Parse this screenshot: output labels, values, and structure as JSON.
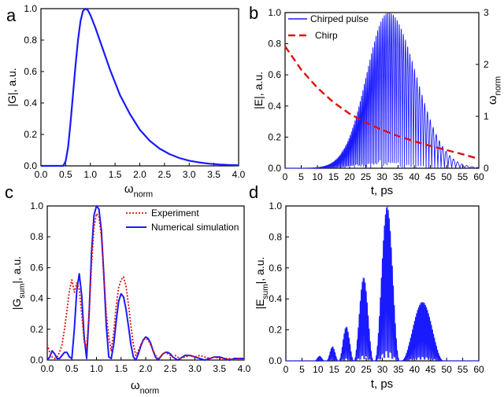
{
  "colors": {
    "blue": "#1a1aff",
    "red": "#e01010",
    "axis": "#000000"
  },
  "chart_data": [
    {
      "id": "a",
      "type": "line",
      "panel_label": "a",
      "xlabel": "ω",
      "xlabel_sub": "norm",
      "ylabel": "|G|, a.u.",
      "xlim": [
        0,
        4
      ],
      "ylim": [
        0,
        1
      ],
      "xticks": [
        "0.0",
        "0.5",
        "1.0",
        "1.5",
        "2.0",
        "2.5",
        "3.0",
        "3.5",
        "4.0"
      ],
      "yticks": [
        "0.0",
        "0.2",
        "0.4",
        "0.6",
        "0.8",
        "1.0"
      ],
      "series": [
        {
          "x": [
            0,
            0.45,
            0.5,
            0.55,
            0.6,
            0.65,
            0.7,
            0.75,
            0.8,
            0.85,
            0.9,
            0.95,
            1.0,
            1.1,
            1.2,
            1.3,
            1.4,
            1.5,
            1.6,
            1.7,
            1.8,
            1.9,
            2.0,
            2.2,
            2.4,
            2.6,
            2.8,
            3.0,
            3.2,
            3.4,
            3.6,
            3.8,
            4.0
          ],
          "y": [
            0,
            0,
            0.03,
            0.12,
            0.28,
            0.46,
            0.64,
            0.8,
            0.92,
            0.985,
            1.0,
            0.99,
            0.96,
            0.88,
            0.79,
            0.7,
            0.61,
            0.53,
            0.45,
            0.39,
            0.33,
            0.28,
            0.23,
            0.16,
            0.11,
            0.075,
            0.05,
            0.033,
            0.022,
            0.014,
            0.009,
            0.006,
            0.004
          ]
        }
      ]
    },
    {
      "id": "b",
      "type": "line",
      "panel_label": "b",
      "xlabel": "t, ps",
      "ylabel": "|E|, a.u.",
      "ylabel_right": "ω",
      "ylabel_right_sub": "norm",
      "xlim": [
        0,
        60
      ],
      "ylim": [
        0,
        1
      ],
      "ylim_right": [
        0,
        3
      ],
      "xticks": [
        "0",
        "5",
        "10",
        "15",
        "20",
        "25",
        "30",
        "35",
        "40",
        "45",
        "50",
        "55",
        "60"
      ],
      "yticks": [
        "0.0",
        "0.2",
        "0.4",
        "0.6",
        "0.8",
        "1.0"
      ],
      "yticks_right": [
        "0",
        "1",
        "2",
        "3"
      ],
      "legend": [
        {
          "name": "Chirped pulse",
          "style": "solid",
          "color": "#1a1aff"
        },
        {
          "name": "Chirp",
          "style": "dashed",
          "color": "#e01010"
        }
      ],
      "envelope": {
        "center": 32,
        "width_left": 9.5,
        "width_right": 12
      },
      "chirp": {
        "t": [
          0,
          5,
          10,
          15,
          20,
          25,
          30,
          35,
          40,
          45,
          50,
          55,
          60
        ],
        "omega": [
          2.35,
          1.9,
          1.55,
          1.27,
          1.05,
          0.88,
          0.74,
          0.62,
          0.52,
          0.43,
          0.35,
          0.27,
          0.18
        ]
      }
    },
    {
      "id": "c",
      "type": "line",
      "panel_label": "c",
      "xlabel": "ω",
      "xlabel_sub": "norm",
      "ylabel": "|G",
      "ylabel_sub": "sum",
      "ylabel_tail": "|, a.u.",
      "xlim": [
        0,
        4
      ],
      "ylim": [
        0,
        1
      ],
      "xticks": [
        "0.0",
        "0.5",
        "1.0",
        "1.5",
        "2.0",
        "2.5",
        "3.0",
        "3.5",
        "4.0"
      ],
      "yticks": [
        "0.0",
        "0.2",
        "0.4",
        "0.6",
        "0.8",
        "1.0"
      ],
      "legend": [
        {
          "name": "Experiment",
          "style": "dotted",
          "color": "#e01010"
        },
        {
          "name": "Numerical simulation",
          "style": "solid",
          "color": "#1a1aff"
        }
      ],
      "series": [
        {
          "name": "Experiment",
          "x": [
            0,
            0.05,
            0.1,
            0.15,
            0.2,
            0.25,
            0.3,
            0.35,
            0.4,
            0.45,
            0.5,
            0.55,
            0.6,
            0.65,
            0.7,
            0.75,
            0.8,
            0.85,
            0.9,
            0.95,
            1.0,
            1.05,
            1.1,
            1.15,
            1.2,
            1.25,
            1.3,
            1.35,
            1.4,
            1.45,
            1.5,
            1.55,
            1.6,
            1.65,
            1.7,
            1.75,
            1.8,
            1.85,
            1.9,
            1.95,
            2.0,
            2.05,
            2.1,
            2.15,
            2.2,
            2.25,
            2.3,
            2.35,
            2.4,
            2.45,
            2.5,
            2.55,
            2.6,
            2.65,
            2.7,
            2.8,
            2.9,
            3.0,
            3.1,
            3.2,
            3.3,
            3.4,
            3.5,
            3.6,
            3.7,
            3.8,
            3.9,
            4.0
          ],
          "y": [
            0.1,
            0.05,
            0.02,
            0.01,
            0.02,
            0.05,
            0.1,
            0.2,
            0.32,
            0.45,
            0.52,
            0.44,
            0.5,
            0.46,
            0.3,
            0.12,
            0.08,
            0.3,
            0.62,
            0.86,
            0.95,
            0.93,
            0.8,
            0.55,
            0.3,
            0.15,
            0.06,
            0.18,
            0.35,
            0.47,
            0.52,
            0.54,
            0.48,
            0.36,
            0.22,
            0.1,
            0.03,
            0.06,
            0.1,
            0.13,
            0.14,
            0.13,
            0.1,
            0.06,
            0.03,
            0.01,
            0.02,
            0.04,
            0.05,
            0.04,
            0.03,
            0.02,
            0.03,
            0.02,
            0.01,
            0.02,
            0.03,
            0.02,
            0.03,
            0.02,
            0.01,
            0.02,
            0.01,
            0.01,
            0.01,
            0.0,
            0.01,
            0.0
          ]
        },
        {
          "name": "Numerical simulation",
          "x": [
            0,
            0.05,
            0.1,
            0.15,
            0.2,
            0.25,
            0.3,
            0.35,
            0.4,
            0.45,
            0.5,
            0.55,
            0.6,
            0.65,
            0.7,
            0.75,
            0.8,
            0.85,
            0.9,
            0.95,
            1.0,
            1.05,
            1.1,
            1.15,
            1.2,
            1.25,
            1.3,
            1.35,
            1.4,
            1.45,
            1.5,
            1.55,
            1.6,
            1.65,
            1.7,
            1.75,
            1.8,
            1.85,
            1.9,
            1.95,
            2.0,
            2.05,
            2.1,
            2.15,
            2.2,
            2.25,
            2.3,
            2.35,
            2.4,
            2.45,
            2.5,
            2.55,
            2.6,
            2.65,
            2.7,
            2.75,
            2.8,
            2.9,
            3.0,
            3.1,
            3.2,
            3.3,
            3.4,
            3.5,
            3.6,
            3.7,
            3.8,
            3.9,
            4.0
          ],
          "y": [
            0.0,
            0.02,
            0.06,
            0.04,
            0.01,
            0.01,
            0.03,
            0.05,
            0.05,
            0.02,
            0.01,
            0.2,
            0.45,
            0.56,
            0.42,
            0.15,
            0.01,
            0.3,
            0.7,
            0.94,
            1.0,
            0.98,
            0.84,
            0.55,
            0.22,
            0.02,
            0.01,
            0.1,
            0.25,
            0.38,
            0.43,
            0.41,
            0.33,
            0.22,
            0.1,
            0.02,
            0.0,
            0.04,
            0.09,
            0.13,
            0.15,
            0.14,
            0.11,
            0.06,
            0.02,
            0.0,
            0.02,
            0.04,
            0.05,
            0.05,
            0.04,
            0.02,
            0.01,
            0.0,
            0.01,
            0.02,
            0.03,
            0.03,
            0.02,
            0.01,
            0.0,
            0.01,
            0.02,
            0.02,
            0.01,
            0.0,
            0.01,
            0.01,
            0.01
          ]
        }
      ]
    },
    {
      "id": "d",
      "type": "line",
      "panel_label": "d",
      "xlabel": "t, ps",
      "ylabel": "|E",
      "ylabel_sub": "sum",
      "ylabel_tail": "|, a.u.",
      "xlim": [
        0,
        60
      ],
      "ylim": [
        0,
        1
      ],
      "xticks": [
        "0",
        "5",
        "10",
        "15",
        "20",
        "25",
        "30",
        "35",
        "40",
        "45",
        "50",
        "55",
        "60"
      ],
      "yticks": [
        "0.0",
        "0.2",
        "0.4",
        "0.6",
        "0.8",
        "1.0"
      ],
      "lobes": [
        {
          "center": 10.5,
          "peak": 0.03,
          "halfwidth": 1.5
        },
        {
          "center": 14.5,
          "peak": 0.09,
          "halfwidth": 1.8
        },
        {
          "center": 18.8,
          "peak": 0.22,
          "halfwidth": 2.3
        },
        {
          "center": 24.2,
          "peak": 0.54,
          "halfwidth": 3.0
        },
        {
          "center": 31.5,
          "peak": 1.0,
          "halfwidth": 3.8
        },
        {
          "center": 42.5,
          "peak": 0.38,
          "halfwidth": 6.5
        }
      ]
    }
  ]
}
